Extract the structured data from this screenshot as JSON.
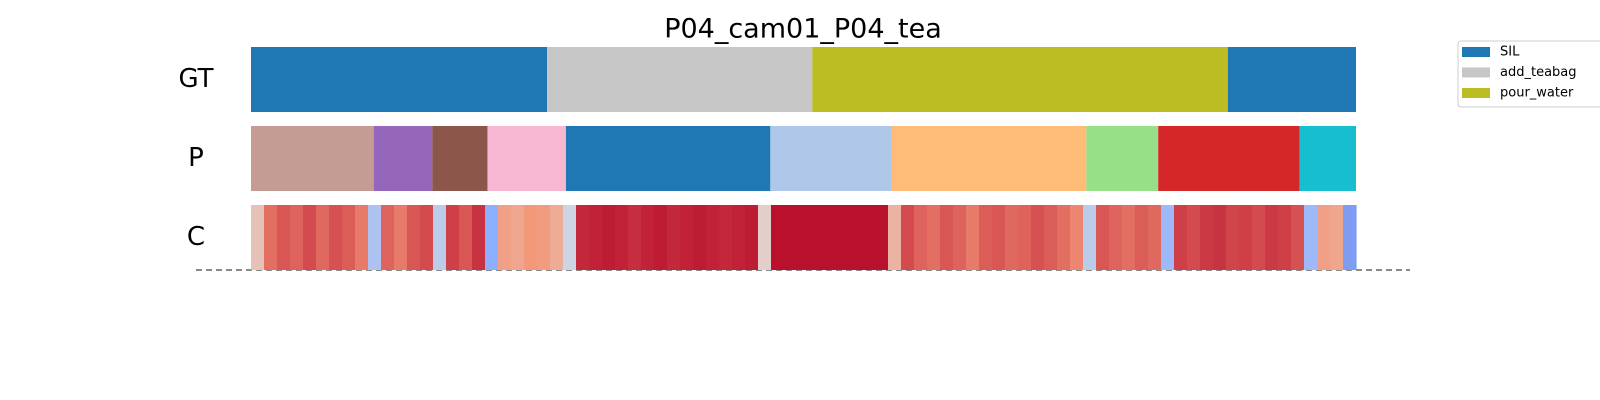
{
  "chart_data": {
    "type": "segmentation",
    "title": "P04_cam01_P04_tea",
    "xlim": [
      0,
      100
    ],
    "legend": [
      {
        "name": "SIL",
        "color": "#1f77b4"
      },
      {
        "name": "add_teabag",
        "color": "#c7c7c7"
      },
      {
        "name": "pour_water",
        "color": "#bcbd22"
      }
    ],
    "rows": [
      {
        "label": "GT",
        "segments": [
          {
            "start": 0,
            "end": 26.8,
            "color": "#1f77b4"
          },
          {
            "start": 26.8,
            "end": 50.8,
            "color": "#c7c7c7"
          },
          {
            "start": 50.8,
            "end": 88.4,
            "color": "#bcbd22"
          },
          {
            "start": 88.4,
            "end": 100,
            "color": "#1f77b4"
          }
        ]
      },
      {
        "label": "P",
        "segments": [
          {
            "start": 0,
            "end": 11.1,
            "color": "#c49c94"
          },
          {
            "start": 11.1,
            "end": 16.4,
            "color": "#9467bd"
          },
          {
            "start": 16.4,
            "end": 21.4,
            "color": "#8c564b"
          },
          {
            "start": 21.4,
            "end": 28.5,
            "color": "#f7b6d2"
          },
          {
            "start": 28.5,
            "end": 47.0,
            "color": "#1f77b4"
          },
          {
            "start": 47.0,
            "end": 58.0,
            "color": "#aec7e8"
          },
          {
            "start": 58.0,
            "end": 75.6,
            "color": "#ffbb78"
          },
          {
            "start": 75.6,
            "end": 82.1,
            "color": "#98df8a"
          },
          {
            "start": 82.1,
            "end": 94.9,
            "color": "#d62728"
          },
          {
            "start": 94.9,
            "end": 100,
            "color": "#17becf"
          }
        ]
      },
      {
        "label": "C",
        "colormap": "coolwarm",
        "values": [
          0.6,
          0.82,
          0.86,
          0.84,
          0.88,
          0.83,
          0.87,
          0.85,
          0.8,
          0.35,
          0.84,
          0.8,
          0.86,
          0.88,
          0.4,
          0.9,
          0.86,
          0.92,
          0.25,
          0.72,
          0.7,
          0.75,
          0.74,
          0.68,
          0.45,
          0.94,
          0.95,
          0.96,
          0.95,
          0.93,
          0.95,
          0.96,
          0.94,
          0.95,
          0.96,
          0.95,
          0.94,
          0.95,
          0.96,
          0.55,
          0.98,
          0.98,
          0.98,
          0.98,
          0.98,
          0.98,
          0.98,
          0.98,
          0.98,
          0.65,
          0.88,
          0.84,
          0.82,
          0.86,
          0.84,
          0.8,
          0.85,
          0.86,
          0.83,
          0.84,
          0.87,
          0.85,
          0.82,
          0.78,
          0.4,
          0.86,
          0.84,
          0.82,
          0.85,
          0.83,
          0.3,
          0.9,
          0.88,
          0.91,
          0.92,
          0.89,
          0.9,
          0.88,
          0.91,
          0.9,
          0.87,
          0.3,
          0.72,
          0.7,
          0.2
        ]
      }
    ]
  }
}
